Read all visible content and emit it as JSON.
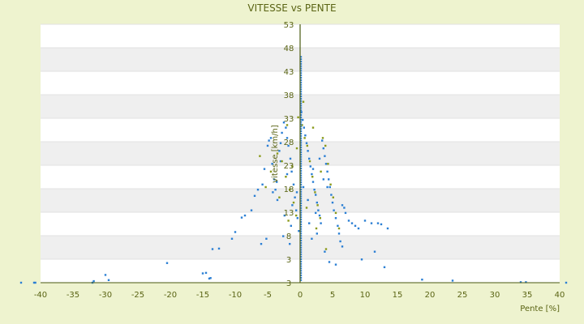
{
  "chart_data": {
    "type": "scatter",
    "title": "VITESSE vs PENTE",
    "xlabel": "Pente [%]",
    "ylabel": "vitesse [km/h]",
    "xlim": [
      -40,
      40
    ],
    "ylim": [
      3,
      53
    ],
    "x_ticks": [
      "-40",
      "-35",
      "-30",
      "-25",
      "-20",
      "-15",
      "-10",
      "-5",
      "0",
      "5",
      "10",
      "15",
      "20",
      "25",
      "30",
      "35",
      "40"
    ],
    "y_ticks": [
      "3",
      "3",
      "8",
      "13",
      "18",
      "23",
      "28",
      "33",
      "38",
      "43",
      "48",
      "53"
    ],
    "grid": true,
    "colors": {
      "background": "#eef3cf",
      "plot_band_light": "#ffffff",
      "plot_band_dark": "#efefef",
      "blue_series": "#2b7fd4",
      "olive_series": "#8a9a1a",
      "text": "#5a6414"
    },
    "series": [
      {
        "color": "blue",
        "points": [
          [
            -43,
            3
          ],
          [
            -41,
            3
          ],
          [
            -40.8,
            3
          ],
          [
            -32,
            3
          ],
          [
            -31.8,
            3.3
          ],
          [
            -30,
            4.5
          ],
          [
            -29.5,
            3.5
          ],
          [
            -20.5,
            6.8
          ],
          [
            -15,
            4.8
          ],
          [
            -14.5,
            4.9
          ],
          [
            -14,
            3.8
          ],
          [
            -13.8,
            3.9
          ],
          [
            -13.5,
            9.5
          ],
          [
            -12.5,
            9.6
          ],
          [
            -10.5,
            11.5
          ],
          [
            -10,
            12.8
          ],
          [
            -9,
            15.6
          ],
          [
            -8.5,
            16.0
          ],
          [
            -7.5,
            17.0
          ],
          [
            -7,
            19.8
          ],
          [
            -6.5,
            21.0
          ],
          [
            -6,
            10.5
          ],
          [
            -5.8,
            22.0
          ],
          [
            -5.5,
            25.0
          ],
          [
            -5.2,
            11.5
          ],
          [
            -5,
            29.5
          ],
          [
            -4.8,
            30.5
          ],
          [
            -4.5,
            31.0
          ],
          [
            -4.3,
            26.0
          ],
          [
            -4,
            23.0
          ],
          [
            -3.8,
            21.0
          ],
          [
            -3.5,
            19.0
          ],
          [
            -3.2,
            28.5
          ],
          [
            -3,
            30.0
          ],
          [
            -2.8,
            32.0
          ],
          [
            -2.5,
            34.0
          ],
          [
            -2.2,
            33.0
          ],
          [
            -2,
            31.0
          ],
          [
            -1.8,
            29.5
          ],
          [
            -1.5,
            27.0
          ],
          [
            -1.3,
            24.5
          ],
          [
            -1,
            22.0
          ],
          [
            -0.8,
            19.5
          ],
          [
            -0.6,
            17.0
          ],
          [
            -0.4,
            15.5
          ],
          [
            -0.2,
            13.0
          ],
          [
            0.2,
            36.0
          ],
          [
            0.4,
            34.5
          ],
          [
            0.6,
            33.0
          ],
          [
            0.8,
            31.5
          ],
          [
            1,
            30.0
          ],
          [
            1.2,
            28.5
          ],
          [
            1.4,
            27.0
          ],
          [
            1.6,
            25.5
          ],
          [
            1.8,
            24.0
          ],
          [
            2,
            22.5
          ],
          [
            2.2,
            21.0
          ],
          [
            2.4,
            20.0
          ],
          [
            2.6,
            18.5
          ],
          [
            2.8,
            17.0
          ],
          [
            3,
            16.0
          ],
          [
            3.2,
            14.5
          ],
          [
            3.4,
            30.5
          ],
          [
            3.6,
            29.0
          ],
          [
            3.8,
            27.5
          ],
          [
            4,
            26.0
          ],
          [
            4.2,
            24.5
          ],
          [
            4.4,
            23.0
          ],
          [
            4.6,
            21.5
          ],
          [
            4.8,
            20.0
          ],
          [
            5,
            18.5
          ],
          [
            5.2,
            17.0
          ],
          [
            5.5,
            15.5
          ],
          [
            5.8,
            14.0
          ],
          [
            6,
            12.5
          ],
          [
            6.2,
            11.0
          ],
          [
            6.5,
            18.0
          ],
          [
            6.8,
            17.5
          ],
          [
            7,
            16.5
          ],
          [
            7.5,
            15.0
          ],
          [
            8,
            14.5
          ],
          [
            8.5,
            14.0
          ],
          [
            9,
            13.5
          ],
          [
            9.5,
            7.5
          ],
          [
            10,
            15.0
          ],
          [
            11,
            14.5
          ],
          [
            11.5,
            9.0
          ],
          [
            12,
            14.5
          ],
          [
            12.5,
            14.3
          ],
          [
            13,
            6.0
          ],
          [
            13.5,
            13.5
          ],
          [
            18.8,
            3.6
          ],
          [
            23.5,
            3.4
          ],
          [
            34,
            3.1
          ],
          [
            34.8,
            3.1
          ],
          [
            41,
            3
          ],
          [
            -1.6,
            10.5
          ],
          [
            -2.6,
            12.0
          ],
          [
            1.8,
            11.5
          ],
          [
            2.6,
            12.5
          ],
          [
            4.5,
            7.0
          ],
          [
            5.5,
            6.5
          ],
          [
            3.8,
            9.0
          ],
          [
            6.5,
            10.0
          ],
          [
            -0.5,
            20.5
          ],
          [
            0.5,
            21.5
          ],
          [
            -1.2,
            18.0
          ],
          [
            1.2,
            19.0
          ],
          [
            -2,
            24.0
          ],
          [
            2,
            25.0
          ],
          [
            -3,
            26.5
          ],
          [
            3,
            27.0
          ],
          [
            -3.6,
            22.5
          ],
          [
            3.6,
            23.0
          ],
          [
            -4.2,
            20.5
          ],
          [
            4.2,
            21.5
          ],
          [
            -2.4,
            16.0
          ],
          [
            2.4,
            16.5
          ],
          [
            -1.4,
            14.0
          ],
          [
            1.4,
            14.5
          ]
        ]
      },
      {
        "color": "olive",
        "points": [
          [
            -6.2,
            27.5
          ],
          [
            -5.3,
            21.5
          ],
          [
            -4.5,
            24.5
          ],
          [
            -3.5,
            28.0
          ],
          [
            -2.8,
            26.5
          ],
          [
            -2.2,
            23.5
          ],
          [
            -1.6,
            21.0
          ],
          [
            -1.0,
            18.5
          ],
          [
            -0.6,
            16.0
          ],
          [
            -0.3,
            35.0
          ],
          [
            0.3,
            33.5
          ],
          [
            0.7,
            31.0
          ],
          [
            1.1,
            29.5
          ],
          [
            1.5,
            26.5
          ],
          [
            1.9,
            23.5
          ],
          [
            2.3,
            20.5
          ],
          [
            2.7,
            18.0
          ],
          [
            3.1,
            15.5
          ],
          [
            3.5,
            31.0
          ],
          [
            3.9,
            29.5
          ],
          [
            4.3,
            26.0
          ],
          [
            4.7,
            22.0
          ],
          [
            5.1,
            19.5
          ],
          [
            5.5,
            16.5
          ],
          [
            6.0,
            13.5
          ],
          [
            4.0,
            9.5
          ],
          [
            -1.8,
            15.0
          ],
          [
            -3.2,
            19.5
          ],
          [
            -2.0,
            33.5
          ],
          [
            2.0,
            33.0
          ],
          [
            0.5,
            38.0
          ],
          [
            -0.5,
            29.0
          ],
          [
            1.0,
            17.5
          ],
          [
            -1.2,
            25.5
          ],
          [
            3.2,
            24.5
          ],
          [
            2.5,
            13.5
          ]
        ]
      }
    ]
  }
}
